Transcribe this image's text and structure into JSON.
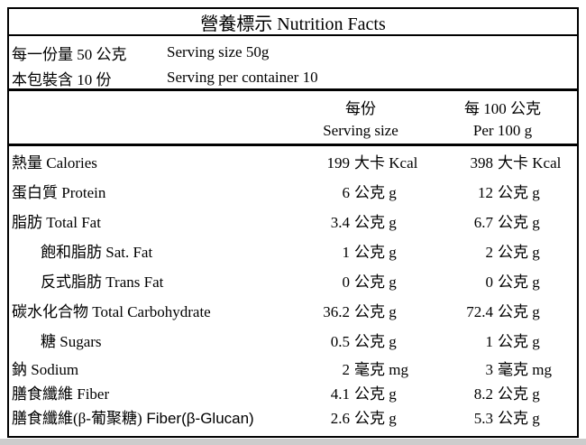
{
  "title": "營養標示 Nutrition Facts",
  "serving_info": [
    {
      "label": "每一份量 50 公克",
      "value": "Serving size 50g"
    },
    {
      "label": "本包裝含 10 份",
      "value": "Serving per container 10"
    }
  ],
  "columns": {
    "per_serving": {
      "line1": "每份",
      "line2": "Serving size"
    },
    "per_100g": {
      "line1": "每 100 公克",
      "line2": "Per 100 g"
    }
  },
  "rows": [
    {
      "label": "熱量 Calories",
      "serving": {
        "num": "199",
        "unit": "大卡 Kcal"
      },
      "per100": {
        "num": "398",
        "unit": "大卡 Kcal"
      }
    },
    {
      "label": "蛋白質 Protein",
      "serving": {
        "num": "6",
        "unit": "公克 g"
      },
      "per100": {
        "num": "12",
        "unit": "公克 g"
      }
    },
    {
      "label": "脂肪 Total Fat",
      "serving": {
        "num": "3.4",
        "unit": "公克 g"
      },
      "per100": {
        "num": "6.7",
        "unit": "公克 g"
      }
    },
    {
      "label": "飽和脂肪 Sat. Fat",
      "serving": {
        "num": "1",
        "unit": "公克 g"
      },
      "per100": {
        "num": "2",
        "unit": "公克 g"
      }
    },
    {
      "label": "反式脂肪 Trans Fat",
      "serving": {
        "num": "0",
        "unit": "公克 g"
      },
      "per100": {
        "num": "0",
        "unit": "公克 g"
      }
    },
    {
      "label": "碳水化合物 Total Carbohydrate",
      "serving": {
        "num": "36.2",
        "unit": "公克 g"
      },
      "per100": {
        "num": "72.4",
        "unit": "公克 g"
      }
    },
    {
      "label": "糖 Sugars",
      "serving": {
        "num": "0.5",
        "unit": "公克 g"
      },
      "per100": {
        "num": "1",
        "unit": "公克 g"
      }
    },
    {
      "label": "鈉 Sodium",
      "serving": {
        "num": "2",
        "unit": "毫克 mg"
      },
      "per100": {
        "num": "3",
        "unit": "毫克 mg"
      }
    },
    {
      "label": "膳食纖維 Fiber",
      "serving": {
        "num": "4.1",
        "unit": "公克 g"
      },
      "per100": {
        "num": "8.2",
        "unit": "公克 g"
      }
    },
    {
      "label": "膳食纖維(β-葡聚糖)",
      "label_sans": " Fiber(β-Glucan)",
      "serving": {
        "num": "2.6",
        "unit": "公克 g"
      },
      "per100": {
        "num": "5.3",
        "unit": "公克 g"
      }
    }
  ],
  "colors": {
    "border": "#000000",
    "text": "#000000",
    "page_edge": "#cccccc"
  }
}
